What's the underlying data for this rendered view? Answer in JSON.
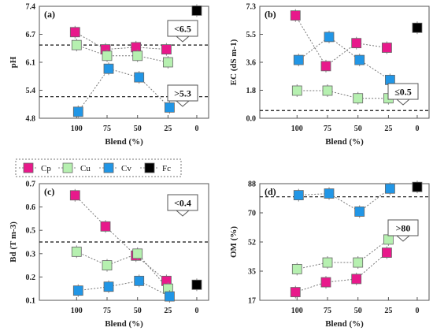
{
  "legend": [
    {
      "name": "Cp",
      "color": "#e8198b"
    },
    {
      "name": "Cu",
      "color": "#b6f0b0"
    },
    {
      "name": "Cv",
      "color": "#2196e6"
    },
    {
      "name": "Fc",
      "color": "#000000"
    }
  ],
  "chart_data": [
    {
      "type": "scatter",
      "panel": "(a)",
      "xlabel": "Blend (%)",
      "ylabel": "pH",
      "categories": [
        "100",
        "75",
        "50",
        "25",
        "0"
      ],
      "yticks": [
        "4.8",
        "5.4",
        "6.1",
        "6.7",
        "7.4"
      ],
      "ylim": [
        4.8,
        7.4
      ],
      "grid": false,
      "reference_lines": [
        6.5,
        5.3
      ],
      "callouts": [
        "<6.5",
        ">5.3"
      ],
      "series": [
        {
          "name": "Cp",
          "values": [
            6.8,
            6.4,
            6.45,
            6.4,
            null
          ]
        },
        {
          "name": "Cu",
          "values": [
            6.5,
            6.25,
            6.25,
            6.1,
            null
          ]
        },
        {
          "name": "Cv",
          "values": [
            4.95,
            5.95,
            5.75,
            5.05,
            null
          ]
        },
        {
          "name": "Fc",
          "values": [
            null,
            null,
            null,
            null,
            7.3
          ]
        }
      ]
    },
    {
      "type": "scatter",
      "panel": "(b)",
      "xlabel": "Blend (%)",
      "ylabel": "EC (dS m-1)",
      "categories": [
        "100",
        "75",
        "50",
        "25",
        "0"
      ],
      "yticks": [
        "0.0",
        "1.8",
        "3.6",
        "5.5",
        "7.3"
      ],
      "ylim": [
        0,
        7.3
      ],
      "grid": false,
      "reference_lines": [
        0.5
      ],
      "callouts": [
        "≤0.5"
      ],
      "series": [
        {
          "name": "Cp",
          "values": [
            6.7,
            3.4,
            4.9,
            4.6,
            null
          ]
        },
        {
          "name": "Cu",
          "values": [
            1.8,
            1.8,
            1.3,
            1.3,
            null
          ]
        },
        {
          "name": "Cv",
          "values": [
            3.8,
            5.3,
            3.8,
            2.5,
            null
          ]
        },
        {
          "name": "Fc",
          "values": [
            null,
            null,
            null,
            null,
            5.9
          ]
        }
      ]
    },
    {
      "type": "scatter",
      "panel": "(c)",
      "xlabel": "Blend (%)",
      "ylabel": "Bd (T m-3)",
      "categories": [
        "100",
        "75",
        "50",
        "25",
        "0"
      ],
      "yticks": [
        "0.1",
        "0.2",
        "0.3",
        "0.5",
        "0.6",
        "0.7"
      ],
      "ylim": [
        0.1,
        0.7
      ],
      "grid": false,
      "reference_lines": [
        0.4
      ],
      "callouts": [
        "<0.4"
      ],
      "series": [
        {
          "name": "Cp",
          "values": [
            0.64,
            0.48,
            0.33,
            0.2,
            null
          ]
        },
        {
          "name": "Cu",
          "values": [
            0.35,
            0.28,
            0.34,
            0.16,
            null
          ]
        },
        {
          "name": "Cv",
          "values": [
            0.15,
            0.17,
            0.2,
            0.12,
            null
          ]
        },
        {
          "name": "Fc",
          "values": [
            null,
            null,
            null,
            null,
            0.18
          ]
        }
      ]
    },
    {
      "type": "scatter",
      "panel": "(d)",
      "xlabel": "Blend (%)",
      "ylabel": "OM (%)",
      "categories": [
        "100",
        "75",
        "50",
        "25",
        "0"
      ],
      "yticks": [
        "17",
        "35",
        "52",
        "70",
        "88"
      ],
      "ylim": [
        17,
        88
      ],
      "grid": false,
      "reference_lines": [
        80
      ],
      "callouts": [
        ">80"
      ],
      "series": [
        {
          "name": "Cp",
          "values": [
            22,
            28,
            30,
            46,
            null
          ]
        },
        {
          "name": "Cu",
          "values": [
            36,
            40,
            40,
            54,
            null
          ]
        },
        {
          "name": "Cv",
          "values": [
            81,
            82,
            71,
            85,
            null
          ]
        },
        {
          "name": "Fc",
          "values": [
            null,
            null,
            null,
            null,
            86
          ]
        }
      ]
    }
  ]
}
